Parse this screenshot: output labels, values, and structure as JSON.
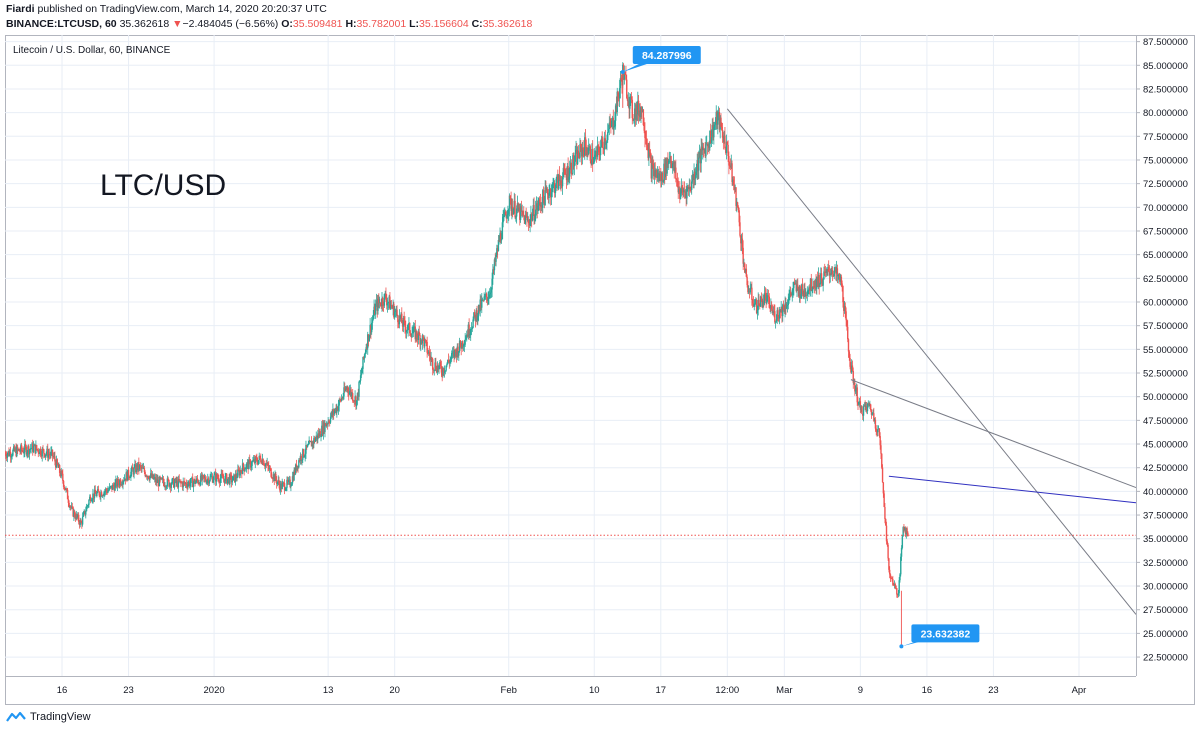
{
  "header": {
    "publisher": "Fiardi",
    "published_text": "published on TradingView.com, March 14, 2020 20:20:37 UTC",
    "symbol": "BINANCE:LTCUSD, 60",
    "last": "35.362618",
    "change_arrow": "▼",
    "change": "−2.484045 (−6.56%)",
    "o_label": "O:",
    "o": "35.509481",
    "h_label": "H:",
    "h": "35.782001",
    "l_label": "L:",
    "l": "35.156604",
    "c_label": "C:",
    "c": "35.362618"
  },
  "footer": {
    "brand": "TradingView",
    "logo_icon": "tradingview-logo-icon"
  },
  "chart_data": {
    "type": "candlestick",
    "legend_title": "Litecoin / U.S. Dollar, 60, BINANCE",
    "overlay_text": "LTC/USD",
    "ylim": [
      20.5,
      88.2
    ],
    "y_ticks": [
      "87.500000",
      "85.000000",
      "82.500000",
      "80.000000",
      "77.500000",
      "75.000000",
      "72.500000",
      "70.000000",
      "67.500000",
      "65.000000",
      "62.500000",
      "60.000000",
      "57.500000",
      "55.000000",
      "52.500000",
      "50.000000",
      "47.500000",
      "45.000000",
      "42.500000",
      "40.000000",
      "37.500000",
      "35.000000",
      "32.500000",
      "30.000000",
      "27.500000",
      "25.000000",
      "22.500000"
    ],
    "x_ticks": [
      "16",
      "23",
      "2020",
      "13",
      "20",
      "Feb",
      "10",
      "17",
      "12:00",
      "Mar",
      "9",
      "16",
      "23",
      "Apr"
    ],
    "x_start": "2019-12-10",
    "x_end": "2020-04-07",
    "price_points": [
      [
        "2019-12-10",
        44.0
      ],
      [
        "2019-12-13",
        44.6
      ],
      [
        "2019-12-15",
        43.8
      ],
      [
        "2019-12-16",
        41.5
      ],
      [
        "2019-12-17",
        38.0
      ],
      [
        "2019-12-18",
        36.6
      ],
      [
        "2019-12-19",
        39.5
      ],
      [
        "2019-12-21",
        40.2
      ],
      [
        "2019-12-24",
        42.6
      ],
      [
        "2019-12-26",
        41.0
      ],
      [
        "2019-12-29",
        40.8
      ],
      [
        "2020-01-01",
        41.5
      ],
      [
        "2020-01-03",
        41.2
      ],
      [
        "2020-01-04",
        42.5
      ],
      [
        "2020-01-06",
        43.5
      ],
      [
        "2020-01-07",
        42.0
      ],
      [
        "2020-01-08",
        40.5
      ],
      [
        "2020-01-09",
        40.8
      ],
      [
        "2020-01-10",
        43.5
      ],
      [
        "2020-01-12",
        46.0
      ],
      [
        "2020-01-14",
        49.0
      ],
      [
        "2020-01-15",
        51.0
      ],
      [
        "2020-01-16",
        49.5
      ],
      [
        "2020-01-17",
        55.5
      ],
      [
        "2020-01-18",
        59.5
      ],
      [
        "2020-01-19",
        60.5
      ],
      [
        "2020-01-20",
        59.0
      ],
      [
        "2020-01-21",
        57.5
      ],
      [
        "2020-01-23",
        56.0
      ],
      [
        "2020-01-24",
        53.5
      ],
      [
        "2020-01-25",
        52.8
      ],
      [
        "2020-01-27",
        55.5
      ],
      [
        "2020-01-29",
        59.5
      ],
      [
        "2020-01-30",
        61.0
      ],
      [
        "2020-01-31",
        66.5
      ],
      [
        "2020-02-01",
        70.5
      ],
      [
        "2020-02-03",
        68.5
      ],
      [
        "2020-02-05",
        71.5
      ],
      [
        "2020-02-07",
        73.5
      ],
      [
        "2020-02-09",
        76.5
      ],
      [
        "2020-02-10",
        75.0
      ],
      [
        "2020-02-12",
        79.0
      ],
      [
        "2020-02-13",
        84.3
      ],
      [
        "2020-02-14",
        80.0
      ],
      [
        "2020-02-15",
        80.5
      ],
      [
        "2020-02-16",
        74.0
      ],
      [
        "2020-02-17",
        73.0
      ],
      [
        "2020-02-18",
        75.5
      ],
      [
        "2020-02-19",
        71.5
      ],
      [
        "2020-02-20",
        72.0
      ],
      [
        "2020-02-21",
        75.0
      ],
      [
        "2020-02-22",
        77.0
      ],
      [
        "2020-02-23",
        79.5
      ],
      [
        "2020-02-24",
        76.0
      ],
      [
        "2020-02-25",
        70.5
      ],
      [
        "2020-02-26",
        62.0
      ],
      [
        "2020-02-27",
        59.5
      ],
      [
        "2020-02-28",
        60.5
      ],
      [
        "2020-02-29",
        58.5
      ],
      [
        "2020-03-01",
        59.5
      ],
      [
        "2020-03-02",
        61.5
      ],
      [
        "2020-03-03",
        61.0
      ],
      [
        "2020-03-04",
        62.0
      ],
      [
        "2020-03-05",
        62.5
      ],
      [
        "2020-03-06",
        63.5
      ],
      [
        "2020-03-07",
        62.0
      ],
      [
        "2020-03-08",
        53.0
      ],
      [
        "2020-03-09",
        48.5
      ],
      [
        "2020-03-10",
        49.0
      ],
      [
        "2020-03-11",
        46.0
      ],
      [
        "2020-03-12",
        31.5
      ],
      [
        "2020-03-13",
        29.0
      ],
      [
        "2020-03-13 12:00",
        36.5
      ],
      [
        "2020-03-14",
        35.36
      ]
    ],
    "markers": [
      {
        "label": "84.287996",
        "date": "2020-02-13",
        "price": 84.287996,
        "position": "above"
      },
      {
        "label": "23.632382",
        "date": "2020-03-13",
        "price": 23.632382,
        "position": "below"
      }
    ],
    "current_price_line": 35.362618,
    "trendlines": [
      {
        "from": [
          "2020-02-24",
          80.4
        ],
        "to": [
          "2020-04-07",
          27.0
        ],
        "color": "#787b86"
      },
      {
        "from": [
          "2020-03-08",
          51.8
        ],
        "to": [
          "2020-04-07",
          40.4
        ],
        "color": "#787b86"
      },
      {
        "from": [
          "2020-03-12",
          41.6
        ],
        "to": [
          "2020-04-07",
          38.8
        ],
        "color": "#3030c0"
      }
    ],
    "colors": {
      "up": "#26a69a",
      "down": "#ef5350",
      "grid": "#e8eef6",
      "marker": "#2196f3",
      "current_line": "#ef5350"
    }
  }
}
